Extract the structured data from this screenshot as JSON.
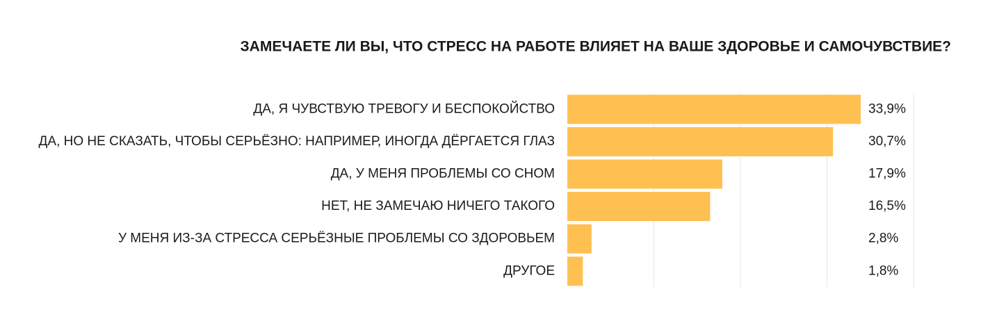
{
  "chart_data": {
    "type": "barh",
    "title": "ЗАМЕЧАЕТЕ ЛИ ВЫ, ЧТО СТРЕСС НА РАБОТЕ ВЛИЯЕТ НА ВАШЕ ЗДОРОВЬЕ И САМОЧУВСТВИЕ?",
    "categories": [
      "ДА, Я ЧУВСТВУЮ ТРЕВОГУ И БЕСПОКОЙСТВО",
      "ДА, НО НЕ СКАЗАТЬ, ЧТОБЫ СЕРЬЁЗНО: НАПРИМЕР, ИНОГДА ДЁРГАЕТСЯ ГЛАЗ",
      "ДА, У МЕНЯ ПРОБЛЕМЫ СО СНОМ",
      "НЕТ, НЕ ЗАМЕЧАЮ НИЧЕГО ТАКОГО",
      "У МЕНЯ ИЗ-ЗА СТРЕССА СЕРЬЁЗНЫЕ ПРОБЛЕМЫ СО ЗДОРОВЬЕМ",
      "ДРУГОЕ"
    ],
    "values": [
      33.9,
      30.7,
      17.9,
      16.5,
      2.8,
      1.8
    ],
    "value_labels": [
      "33,9%",
      "30,7%",
      "17,9%",
      "16,5%",
      "2,8%",
      "1,8%"
    ],
    "color": "#ffc052",
    "xlim": [
      0,
      40
    ],
    "xticks": [
      10,
      20,
      30,
      40
    ],
    "grid": true
  }
}
